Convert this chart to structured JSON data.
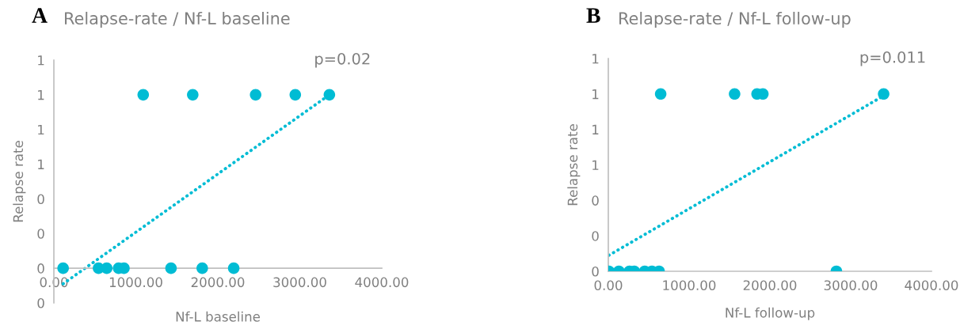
{
  "chart_data": [
    {
      "type": "scatter",
      "title": "Relapse-rate / Nf-L baseline",
      "xlabel": "Nf-L baseline",
      "ylabel": "Relapse rate",
      "annotations": [
        "A",
        "p=0.02"
      ],
      "xlim": [
        0,
        4000
      ],
      "xticks": [
        {
          "value": 0,
          "label": "0.00"
        },
        {
          "value": 1000,
          "label": "1000.00"
        },
        {
          "value": 2000,
          "label": "2000.00"
        },
        {
          "value": 3000,
          "label": "3000.00"
        },
        {
          "value": 4000,
          "label": "4000.00"
        }
      ],
      "ylim": [
        -0.2,
        1.2
      ],
      "yticks": [
        {
          "value": -0.2,
          "label": "0"
        },
        {
          "value": 0,
          "label": "0"
        },
        {
          "value": 0.2,
          "label": "0"
        },
        {
          "value": 0.4,
          "label": "0"
        },
        {
          "value": 0.6,
          "label": "1"
        },
        {
          "value": 0.8,
          "label": "1"
        },
        {
          "value": 1.0,
          "label": "1"
        },
        {
          "value": 1.2,
          "label": "1"
        }
      ],
      "series": [
        {
          "marker": "circle",
          "color": "#00bcd4",
          "x": [
            113,
            545,
            645,
            790,
            855,
            1429,
            1810,
            2194,
            1090,
            1694,
            2461,
            2945,
            3361
          ],
          "values": [
            0,
            0,
            0,
            0,
            0,
            0,
            0,
            0,
            1,
            1,
            1,
            1,
            1
          ]
        },
        {
          "type": "line",
          "color": "#00bcd4",
          "line_style": "dotted",
          "marker": "none",
          "x": [
            113,
            3361
          ],
          "values": [
            -0.09,
            1.0
          ]
        }
      ]
    },
    {
      "type": "scatter",
      "title": "Relapse-rate / Nf-L follow-up",
      "xlabel": "Nf-L follow-up",
      "ylabel": "Relapse rate",
      "annotations": [
        "B",
        "p=0.011"
      ],
      "xlim": [
        0,
        4000
      ],
      "xticks": [
        {
          "value": 0,
          "label": "0.00"
        },
        {
          "value": 1000,
          "label": "1000.00"
        },
        {
          "value": 2000,
          "label": "2000.00"
        },
        {
          "value": 3000,
          "label": "3000.00"
        },
        {
          "value": 4000,
          "label": "4000.00"
        }
      ],
      "ylim": [
        0,
        1.2
      ],
      "yticks": [
        {
          "value": 0,
          "label": "0"
        },
        {
          "value": 0.2,
          "label": "0"
        },
        {
          "value": 0.4,
          "label": "0"
        },
        {
          "value": 0.6,
          "label": "1"
        },
        {
          "value": 0.8,
          "label": "1"
        },
        {
          "value": 1.0,
          "label": "1"
        },
        {
          "value": 1.2,
          "label": "1"
        }
      ],
      "series": [
        {
          "marker": "circle",
          "color": "#00bcd4",
          "x": [
            7,
            131,
            262,
            321,
            451,
            540,
            628,
            2823,
            648,
            1563,
            1841,
            1913,
            3408
          ],
          "values": [
            0,
            0,
            0,
            0,
            0,
            0,
            0,
            0,
            1,
            1,
            1,
            1,
            1
          ]
        },
        {
          "type": "line",
          "color": "#00bcd4",
          "line_style": "dotted",
          "marker": "none",
          "x": [
            7,
            3408
          ],
          "values": [
            0.09,
            0.99
          ]
        }
      ]
    }
  ]
}
